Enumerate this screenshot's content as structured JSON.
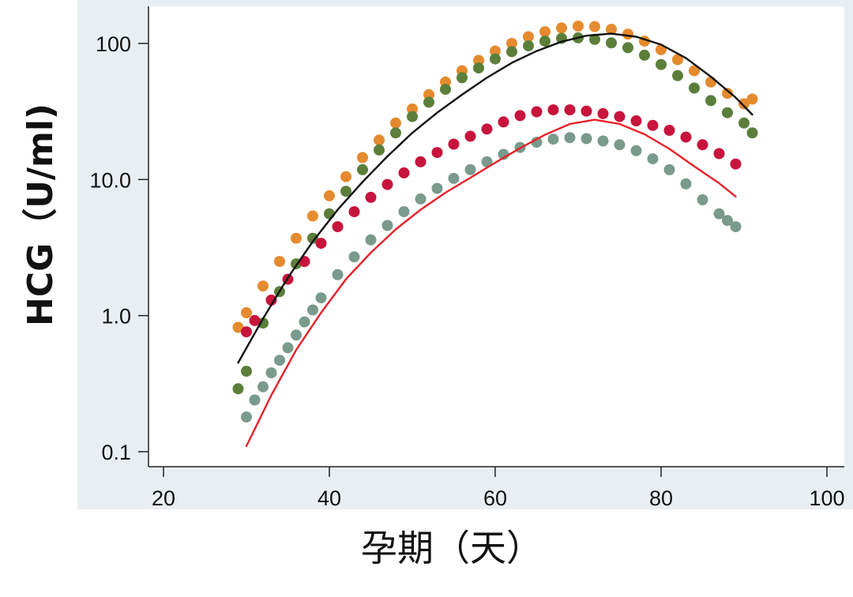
{
  "chart_data": {
    "type": "scatter",
    "title": "",
    "xlabel": "孕期（天）",
    "ylabel": "HCG（U/ml)",
    "y_scale": "log",
    "xlim": [
      20,
      100
    ],
    "ylim": [
      0.1,
      150
    ],
    "x_ticks": [
      20,
      40,
      60,
      80,
      100
    ],
    "x_tick_labels": [
      "20",
      "40",
      "60",
      "80",
      "100"
    ],
    "y_ticks": [
      0.1,
      1,
      10,
      100
    ],
    "y_tick_labels": [
      "0.1",
      "1.0",
      "10.0",
      "100"
    ],
    "grid": false,
    "series": [
      {
        "color": "#e58a2e",
        "marker": "dot",
        "x": [
          29,
          30,
          32,
          34,
          36,
          38,
          40,
          42,
          44,
          46,
          48,
          50,
          52,
          54,
          56,
          58,
          60,
          62,
          64,
          66,
          68,
          70,
          72,
          74,
          76,
          78,
          80,
          82,
          84,
          86,
          88,
          90,
          91
        ],
        "y": [
          0.82,
          1.05,
          1.65,
          2.5,
          3.7,
          5.4,
          7.6,
          10.5,
          14.5,
          19.5,
          26,
          33,
          42,
          52,
          63,
          75,
          88,
          100,
          112,
          122,
          130,
          134,
          133,
          127,
          117,
          104,
          90,
          76,
          63,
          52,
          43,
          36,
          39
        ]
      },
      {
        "color": "#5b7f3a",
        "marker": "dot",
        "x": [
          29,
          30,
          32,
          34,
          36,
          38,
          40,
          42,
          44,
          46,
          48,
          50,
          52,
          54,
          56,
          58,
          60,
          62,
          64,
          66,
          68,
          70,
          72,
          74,
          76,
          78,
          80,
          82,
          84,
          86,
          88,
          90,
          91
        ],
        "y": [
          0.29,
          0.39,
          0.88,
          1.5,
          2.4,
          3.7,
          5.6,
          8.2,
          11.8,
          16.5,
          22,
          29,
          37,
          46,
          56,
          66,
          77,
          87,
          96,
          104,
          109,
          110,
          107,
          101,
          93,
          82,
          70,
          58,
          47,
          38,
          31,
          26,
          22
        ]
      },
      {
        "color": "#c8143c",
        "marker": "dot",
        "x": [
          30,
          31,
          33,
          35,
          37,
          39,
          41,
          43,
          45,
          47,
          49,
          51,
          53,
          55,
          57,
          59,
          61,
          63,
          65,
          67,
          69,
          71,
          73,
          75,
          77,
          79,
          81,
          83,
          85,
          87,
          89
        ],
        "y": [
          0.76,
          0.92,
          1.3,
          1.85,
          2.5,
          3.4,
          4.5,
          5.8,
          7.4,
          9.2,
          11.2,
          13.5,
          15.8,
          18.2,
          20.8,
          23.5,
          26.5,
          29.5,
          31.5,
          32.5,
          32.5,
          31.8,
          30.5,
          29,
          27,
          25,
          23,
          20.5,
          18,
          15.5,
          13
        ]
      },
      {
        "color": "#7a9a8c",
        "marker": "dot",
        "x": [
          30,
          31,
          32,
          33,
          34,
          35,
          36,
          37,
          38,
          39,
          41,
          43,
          45,
          47,
          49,
          51,
          53,
          55,
          57,
          59,
          61,
          63,
          65,
          67,
          69,
          71,
          73,
          75,
          77,
          79,
          81,
          83,
          85,
          87,
          88,
          89
        ],
        "y": [
          0.18,
          0.24,
          0.3,
          0.38,
          0.47,
          0.58,
          0.72,
          0.9,
          1.1,
          1.35,
          2.0,
          2.7,
          3.6,
          4.6,
          5.8,
          7.2,
          8.6,
          10.2,
          11.8,
          13.5,
          15.3,
          17.2,
          18.8,
          19.8,
          20.3,
          20,
          19.2,
          18,
          16.3,
          14.2,
          11.8,
          9.3,
          7.1,
          5.6,
          5.0,
          4.5
        ]
      },
      {
        "color": "#111111",
        "marker": "line",
        "x": [
          29,
          32,
          35,
          38,
          41,
          44,
          47,
          50,
          53,
          56,
          59,
          62,
          65,
          68,
          71,
          74,
          77,
          80,
          83,
          86,
          89,
          91
        ],
        "y": [
          0.45,
          0.95,
          1.9,
          3.5,
          6.0,
          9.6,
          14.8,
          22,
          31,
          42,
          56,
          72,
          88,
          103,
          114,
          118,
          112,
          98,
          78,
          57,
          40,
          30
        ]
      },
      {
        "color": "#e8202a",
        "marker": "line",
        "x": [
          30,
          33,
          36,
          39,
          42,
          45,
          48,
          51,
          54,
          57,
          60,
          63,
          66,
          69,
          72,
          75,
          78,
          81,
          84,
          87,
          89
        ],
        "y": [
          0.11,
          0.26,
          0.56,
          1.05,
          1.85,
          2.9,
          4.3,
          6.0,
          8.0,
          10.3,
          13.3,
          17.0,
          21.3,
          25.6,
          27.5,
          25.6,
          21.5,
          16.8,
          12.5,
          9.4,
          7.5
        ]
      }
    ]
  }
}
